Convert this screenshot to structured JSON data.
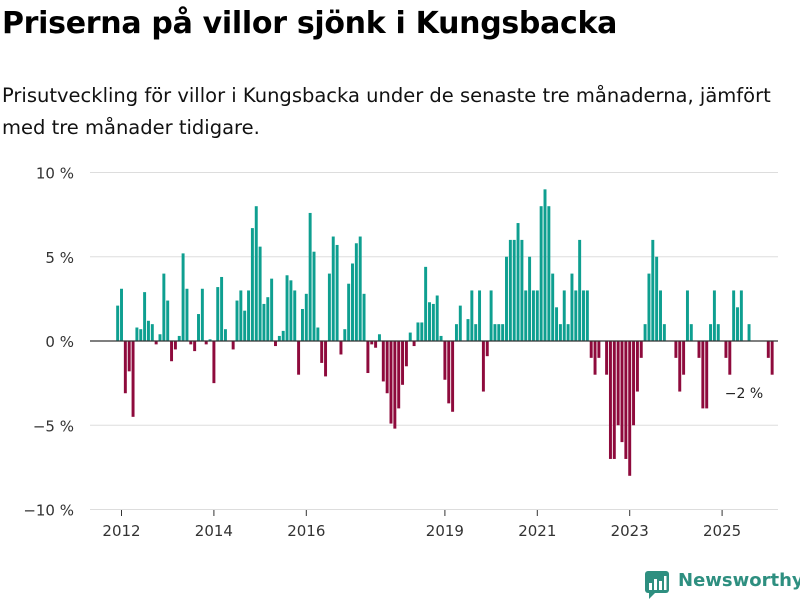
{
  "title": "Priserna på villor sjönk i Kungsbacka",
  "subtitle": "Prisutveckling för villor i Kungsbacka under de senaste tre månaderna, jämfört med tre månader tidigare.",
  "branding": {
    "name": "Newsworthy",
    "icon": "newsworthy-logo-icon",
    "color": "#2e8f80"
  },
  "colors": {
    "positive": "#0e9f90",
    "negative": "#8e0a3c",
    "grid": "#dddddd",
    "zero_line": "#333333"
  },
  "chart_data": {
    "type": "bar",
    "title": "Priserna på villor sjönk i Kungsbacka",
    "xlabel": "",
    "ylabel": "",
    "x_start": "2011-12",
    "x_range": [
      2011.5,
      2026.7
    ],
    "ylim": [
      -10,
      10
    ],
    "y_ticks": [
      {
        "value": 10,
        "label": "10 %"
      },
      {
        "value": 5,
        "label": "5 %"
      },
      {
        "value": 0,
        "label": "0 %"
      },
      {
        "value": -5,
        "label": "−5 %"
      },
      {
        "value": -10,
        "label": "−10 %"
      }
    ],
    "x_ticks": [
      {
        "value": 2012,
        "label": "2012"
      },
      {
        "value": 2014,
        "label": "2014"
      },
      {
        "value": 2016,
        "label": "2016"
      },
      {
        "value": 2019,
        "label": "2019"
      },
      {
        "value": 2021,
        "label": "2021"
      },
      {
        "value": 2023,
        "label": "2023"
      },
      {
        "value": 2025,
        "label": "2025"
      }
    ],
    "annotation": {
      "label": "−2 %",
      "value": -2
    },
    "grid": true,
    "values": [
      2.1,
      3.1,
      -3.1,
      -1.8,
      -4.5,
      0.8,
      0.7,
      2.9,
      1.2,
      1.0,
      -0.2,
      0.4,
      4.0,
      2.4,
      -1.2,
      -0.5,
      0.3,
      5.2,
      3.1,
      -0.2,
      -0.6,
      1.6,
      3.1,
      -0.2,
      0.1,
      -2.5,
      3.2,
      3.8,
      0.7,
      0.0,
      -0.5,
      2.4,
      3.0,
      1.8,
      3.0,
      6.7,
      8.0,
      5.6,
      2.2,
      2.6,
      3.7,
      -0.3,
      0.3,
      0.6,
      3.9,
      3.6,
      3.0,
      -2.0,
      1.9,
      2.8,
      7.6,
      5.3,
      0.8,
      -1.3,
      -2.1,
      4.0,
      6.2,
      5.7,
      -0.8,
      0.7,
      3.4,
      4.6,
      5.8,
      6.2,
      2.8,
      -1.9,
      -0.2,
      -0.4,
      0.4,
      -2.4,
      -3.1,
      -4.9,
      -5.2,
      -4.0,
      -2.6,
      -1.5,
      0.5,
      -0.3,
      1.1,
      1.1,
      4.4,
      2.3,
      2.2,
      2.7,
      0.3,
      -2.3,
      -3.7,
      -4.2,
      1.0,
      2.1,
      0.0,
      1.3,
      3.0,
      1.0,
      3.0,
      -3.0,
      -0.9,
      3.0,
      1.0,
      1.0,
      1.0,
      5.0,
      6.0,
      6.0,
      7.0,
      6.0,
      3.0,
      5.0,
      3.0,
      3.0,
      8.0,
      9.0,
      8.0,
      4.0,
      2.0,
      1.0,
      3.0,
      1.0,
      4.0,
      3.0,
      6.0,
      3.0,
      3.0,
      -1.0,
      -2.0,
      -1.0,
      0.0,
      -2.0,
      -7.0,
      -7.0,
      -5.0,
      -6.0,
      -7.0,
      -8.0,
      -5.0,
      -3.0,
      -1.0,
      1.0,
      4.0,
      6.0,
      5.0,
      3.0,
      1.0,
      0.0,
      0.0,
      -1.0,
      -3.0,
      -2.0,
      3.0,
      1.0,
      0.0,
      -1.0,
      -4.0,
      -4.0,
      1.0,
      3.0,
      1.0,
      0.0,
      -1.0,
      -2.0,
      3.0,
      2.0,
      3.0,
      0.0,
      1.0,
      0.0,
      0.0,
      0.0,
      0.0,
      -1.0,
      -2.0
    ]
  }
}
